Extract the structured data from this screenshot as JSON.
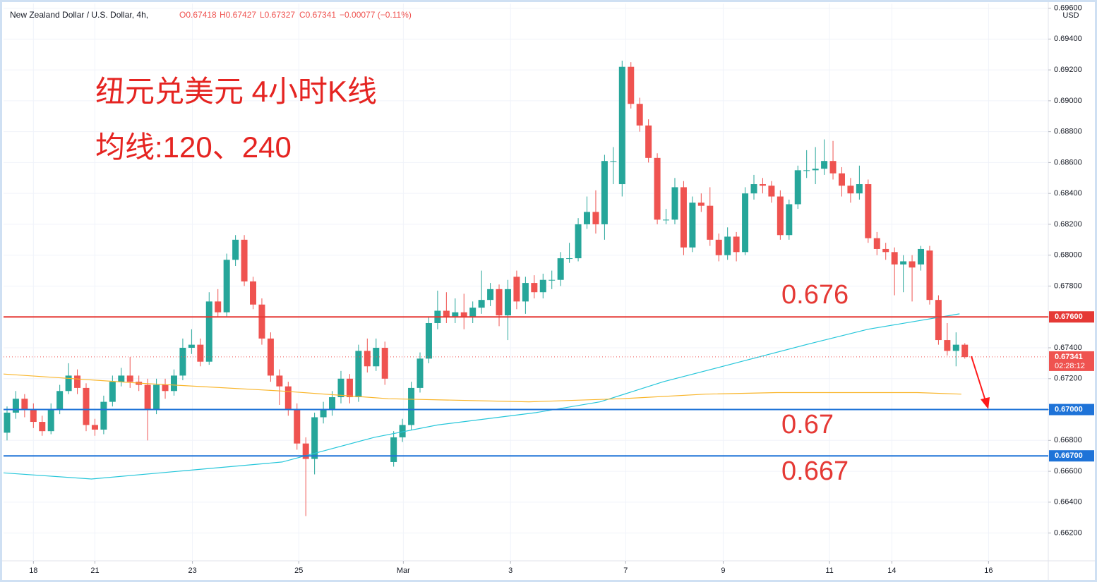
{
  "chart_data": {
    "type": "candlestick",
    "symbol": "New Zealand Dollar / U.S. Dollar, 4h,",
    "ohlc_header": [
      "O0.67418",
      "H0.67427",
      "L0.67327",
      "C0.67341",
      "−0.00077 (−0.11%)"
    ],
    "currency": "USD",
    "title": "纽元兑美元 4小时K线",
    "subtitle": "均线:120、240",
    "ylim": [
      0.6602,
      0.6963
    ],
    "xlim": [
      -0.4,
      118.5
    ],
    "yticks": [
      {
        "value": 0.662,
        "label": "0.66200"
      },
      {
        "value": 0.664,
        "label": "0.66400"
      },
      {
        "value": 0.666,
        "label": "0.66600"
      },
      {
        "value": 0.668,
        "label": "0.66800"
      },
      {
        "value": 0.67,
        "label": "0.67000"
      },
      {
        "value": 0.672,
        "label": "0.67200"
      },
      {
        "value": 0.674,
        "label": "0.67400"
      },
      {
        "value": 0.676,
        "label": "0.67600"
      },
      {
        "value": 0.678,
        "label": "0.67800"
      },
      {
        "value": 0.68,
        "label": "0.68000"
      },
      {
        "value": 0.682,
        "label": "0.68200"
      },
      {
        "value": 0.684,
        "label": "0.68400"
      },
      {
        "value": 0.686,
        "label": "0.68600"
      },
      {
        "value": 0.688,
        "label": "0.68800"
      },
      {
        "value": 0.69,
        "label": "0.69000"
      },
      {
        "value": 0.692,
        "label": "0.69200"
      },
      {
        "value": 0.694,
        "label": "0.69400"
      },
      {
        "value": 0.696,
        "label": "0.69600"
      }
    ],
    "xticks": [
      {
        "value": 3,
        "label": "18"
      },
      {
        "value": 10,
        "label": "21"
      },
      {
        "value": 21.1,
        "label": "23"
      },
      {
        "value": 33.2,
        "label": "25"
      },
      {
        "value": 45.1,
        "label": "Mar"
      },
      {
        "value": 57.3,
        "label": "3"
      },
      {
        "value": 70.4,
        "label": "7"
      },
      {
        "value": 81.5,
        "label": "9"
      },
      {
        "value": 93.6,
        "label": "11"
      },
      {
        "value": 100.7,
        "label": "14"
      },
      {
        "value": 111.7,
        "label": "16"
      }
    ],
    "grid": true,
    "candles": {
      "up_color": "#26a69a",
      "down_color": "#ef5350",
      "values": [
        [
          0.6685,
          0.6702,
          0.668,
          0.6698
        ],
        [
          0.6698,
          0.6712,
          0.6694,
          0.6707
        ],
        [
          0.6707,
          0.671,
          0.6695,
          0.67
        ],
        [
          0.67,
          0.6704,
          0.6688,
          0.6692
        ],
        [
          0.6692,
          0.6696,
          0.6683,
          0.6686
        ],
        [
          0.6686,
          0.6704,
          0.6684,
          0.67
        ],
        [
          0.67,
          0.6716,
          0.6697,
          0.6712
        ],
        [
          0.6712,
          0.673,
          0.671,
          0.6722
        ],
        [
          0.6722,
          0.6726,
          0.671,
          0.6714
        ],
        [
          0.6714,
          0.6717,
          0.6686,
          0.669
        ],
        [
          0.669,
          0.6694,
          0.6683,
          0.6687
        ],
        [
          0.6687,
          0.6709,
          0.6684,
          0.6705
        ],
        [
          0.6705,
          0.6722,
          0.6702,
          0.6718
        ],
        [
          0.6718,
          0.6727,
          0.6715,
          0.6722
        ],
        [
          0.6722,
          0.6734,
          0.6714,
          0.6718
        ],
        [
          0.6718,
          0.6722,
          0.6712,
          0.6716
        ],
        [
          0.6716,
          0.672,
          0.668,
          0.67
        ],
        [
          0.67,
          0.672,
          0.6697,
          0.6716
        ],
        [
          0.6716,
          0.672,
          0.6707,
          0.6712
        ],
        [
          0.6712,
          0.6726,
          0.6709,
          0.6722
        ],
        [
          0.6722,
          0.6746,
          0.6719,
          0.674
        ],
        [
          0.674,
          0.6752,
          0.6736,
          0.6742
        ],
        [
          0.6742,
          0.6746,
          0.6728,
          0.6731
        ],
        [
          0.6731,
          0.6776,
          0.6729,
          0.677
        ],
        [
          0.677,
          0.6778,
          0.676,
          0.6763
        ],
        [
          0.6763,
          0.6801,
          0.676,
          0.6797
        ],
        [
          0.6797,
          0.6813,
          0.6793,
          0.681
        ],
        [
          0.681,
          0.6813,
          0.678,
          0.6783
        ],
        [
          0.6783,
          0.6786,
          0.6765,
          0.6768
        ],
        [
          0.6768,
          0.6772,
          0.6742,
          0.6746
        ],
        [
          0.6746,
          0.675,
          0.6718,
          0.6722
        ],
        [
          0.6722,
          0.6726,
          0.6703,
          0.6715
        ],
        [
          0.6715,
          0.6718,
          0.6696,
          0.67
        ],
        [
          0.67,
          0.6704,
          0.6674,
          0.6678
        ],
        [
          0.6678,
          0.6682,
          0.6631,
          0.6668
        ],
        [
          0.6668,
          0.6698,
          0.6658,
          0.6695
        ],
        [
          0.6695,
          0.6705,
          0.6691,
          0.67
        ],
        [
          0.67,
          0.6712,
          0.6696,
          0.6708
        ],
        [
          0.6708,
          0.6725,
          0.6704,
          0.672
        ],
        [
          0.672,
          0.6723,
          0.6704,
          0.6708
        ],
        [
          0.6708,
          0.6742,
          0.6705,
          0.6738
        ],
        [
          0.6738,
          0.6746,
          0.6724,
          0.6728
        ],
        [
          0.6728,
          0.6746,
          0.6725,
          0.674
        ],
        [
          0.674,
          0.6744,
          0.6716,
          0.672
        ],
        [
          0.6666,
          0.6686,
          0.6663,
          0.6682
        ],
        [
          0.6682,
          0.6694,
          0.6679,
          0.669
        ],
        [
          0.669,
          0.6718,
          0.6687,
          0.6714
        ],
        [
          0.6714,
          0.6737,
          0.6711,
          0.6733
        ],
        [
          0.6733,
          0.676,
          0.673,
          0.6756
        ],
        [
          0.6756,
          0.6777,
          0.6752,
          0.6764
        ],
        [
          0.6764,
          0.6776,
          0.6756,
          0.676
        ],
        [
          0.676,
          0.6772,
          0.6756,
          0.6763
        ],
        [
          0.6763,
          0.6775,
          0.6752,
          0.676
        ],
        [
          0.676,
          0.677,
          0.6756,
          0.6766
        ],
        [
          0.6766,
          0.679,
          0.6762,
          0.6771
        ],
        [
          0.6771,
          0.6782,
          0.6767,
          0.6778
        ],
        [
          0.6778,
          0.6781,
          0.6754,
          0.6761
        ],
        [
          0.6761,
          0.6784,
          0.6745,
          0.6778
        ],
        [
          0.6786,
          0.679,
          0.6765,
          0.677
        ],
        [
          0.677,
          0.6786,
          0.6762,
          0.6782
        ],
        [
          0.6782,
          0.6787,
          0.6772,
          0.6776
        ],
        [
          0.6776,
          0.6788,
          0.6772,
          0.6784
        ],
        [
          0.6784,
          0.679,
          0.6778,
          0.6784
        ],
        [
          0.6784,
          0.6802,
          0.678,
          0.6798
        ],
        [
          0.6798,
          0.6808,
          0.6795,
          0.6798
        ],
        [
          0.6798,
          0.6824,
          0.6796,
          0.682
        ],
        [
          0.682,
          0.6838,
          0.6817,
          0.6828
        ],
        [
          0.6828,
          0.6842,
          0.6814,
          0.682
        ],
        [
          0.682,
          0.6865,
          0.681,
          0.6861
        ],
        [
          0.6861,
          0.687,
          0.6846,
          0.6861
        ],
        [
          0.6846,
          0.6926,
          0.6838,
          0.6922
        ],
        [
          0.6922,
          0.6925,
          0.6895,
          0.6898
        ],
        [
          0.6898,
          0.6902,
          0.688,
          0.6884
        ],
        [
          0.6884,
          0.6888,
          0.686,
          0.6863
        ],
        [
          0.6863,
          0.6866,
          0.682,
          0.6823
        ],
        [
          0.6823,
          0.683,
          0.682,
          0.6823
        ],
        [
          0.6823,
          0.685,
          0.682,
          0.6844
        ],
        [
          0.6844,
          0.6848,
          0.68,
          0.6805
        ],
        [
          0.6805,
          0.6838,
          0.6802,
          0.6834
        ],
        [
          0.6834,
          0.684,
          0.6828,
          0.6832
        ],
        [
          0.6832,
          0.6844,
          0.6806,
          0.681
        ],
        [
          0.681,
          0.6814,
          0.6796,
          0.68
        ],
        [
          0.68,
          0.6818,
          0.6797,
          0.6812
        ],
        [
          0.6812,
          0.6815,
          0.6796,
          0.6802
        ],
        [
          0.6802,
          0.6844,
          0.68,
          0.684
        ],
        [
          0.684,
          0.6852,
          0.6836,
          0.6846
        ],
        [
          0.6846,
          0.685,
          0.684,
          0.6845
        ],
        [
          0.6845,
          0.6848,
          0.6834,
          0.6838
        ],
        [
          0.6838,
          0.6842,
          0.681,
          0.6813
        ],
        [
          0.6813,
          0.6836,
          0.681,
          0.6833
        ],
        [
          0.6833,
          0.6858,
          0.683,
          0.6855
        ],
        [
          0.6855,
          0.6868,
          0.685,
          0.6855
        ],
        [
          0.6855,
          0.687,
          0.6846,
          0.6856
        ],
        [
          0.6856,
          0.6875,
          0.6852,
          0.6861
        ],
        [
          0.6861,
          0.6874,
          0.6849,
          0.6853
        ],
        [
          0.6853,
          0.6857,
          0.6838,
          0.6845
        ],
        [
          0.6845,
          0.685,
          0.6834,
          0.684
        ],
        [
          0.684,
          0.6858,
          0.6836,
          0.6846
        ],
        [
          0.6846,
          0.6849,
          0.6808,
          0.6811
        ],
        [
          0.6811,
          0.6815,
          0.68,
          0.6804
        ],
        [
          0.6804,
          0.6808,
          0.6797,
          0.6802
        ],
        [
          0.6802,
          0.6805,
          0.6774,
          0.6794
        ],
        [
          0.6794,
          0.68,
          0.6776,
          0.6796
        ],
        [
          0.6796,
          0.68,
          0.677,
          0.6792
        ],
        [
          0.6794,
          0.6806,
          0.679,
          0.6804
        ],
        [
          0.6803,
          0.6806,
          0.6768,
          0.6771
        ],
        [
          0.6771,
          0.6774,
          0.6742,
          0.6745
        ],
        [
          0.6745,
          0.6756,
          0.6735,
          0.6738
        ],
        [
          0.6738,
          0.675,
          0.6728,
          0.6742
        ],
        [
          0.6742,
          0.6743,
          0.6733,
          0.6734
        ]
      ]
    },
    "lines": [
      {
        "color": "#26c6da",
        "x": [
          -0.4,
          9.6,
          31.3,
          41.8,
          49,
          60.2,
          67.5,
          74.7,
          83.5,
          91.6,
          98,
          108.4
        ],
        "values": [
          0.6659,
          0.6655,
          0.6666,
          0.6682,
          0.669,
          0.6698,
          0.6705,
          0.6718,
          0.6731,
          0.6743,
          0.6752,
          0.6762
        ]
      },
      {
        "color": "#f9b52a",
        "x": [
          -0.4,
          15.3,
          31.3,
          43.4,
          59.4,
          69.9,
          79.5,
          87.6,
          103.6,
          108.6
        ],
        "values": [
          0.6723,
          0.6717,
          0.6712,
          0.6707,
          0.6705,
          0.6707,
          0.671,
          0.6711,
          0.6711,
          0.671
        ]
      }
    ],
    "levels": [
      {
        "value": 0.676,
        "label": "0.67600",
        "color": "#e53935"
      },
      {
        "value": 0.67,
        "label": "0.67000",
        "color": "#1e73d8"
      },
      {
        "value": 0.667,
        "label": "0.66700",
        "color": "#1e73d8"
      }
    ],
    "annotations": [
      "0.676",
      "0.67",
      "0.667"
    ],
    "last_price": {
      "value": 0.67341,
      "label": "0.67341",
      "countdown": "02:28:12"
    }
  }
}
